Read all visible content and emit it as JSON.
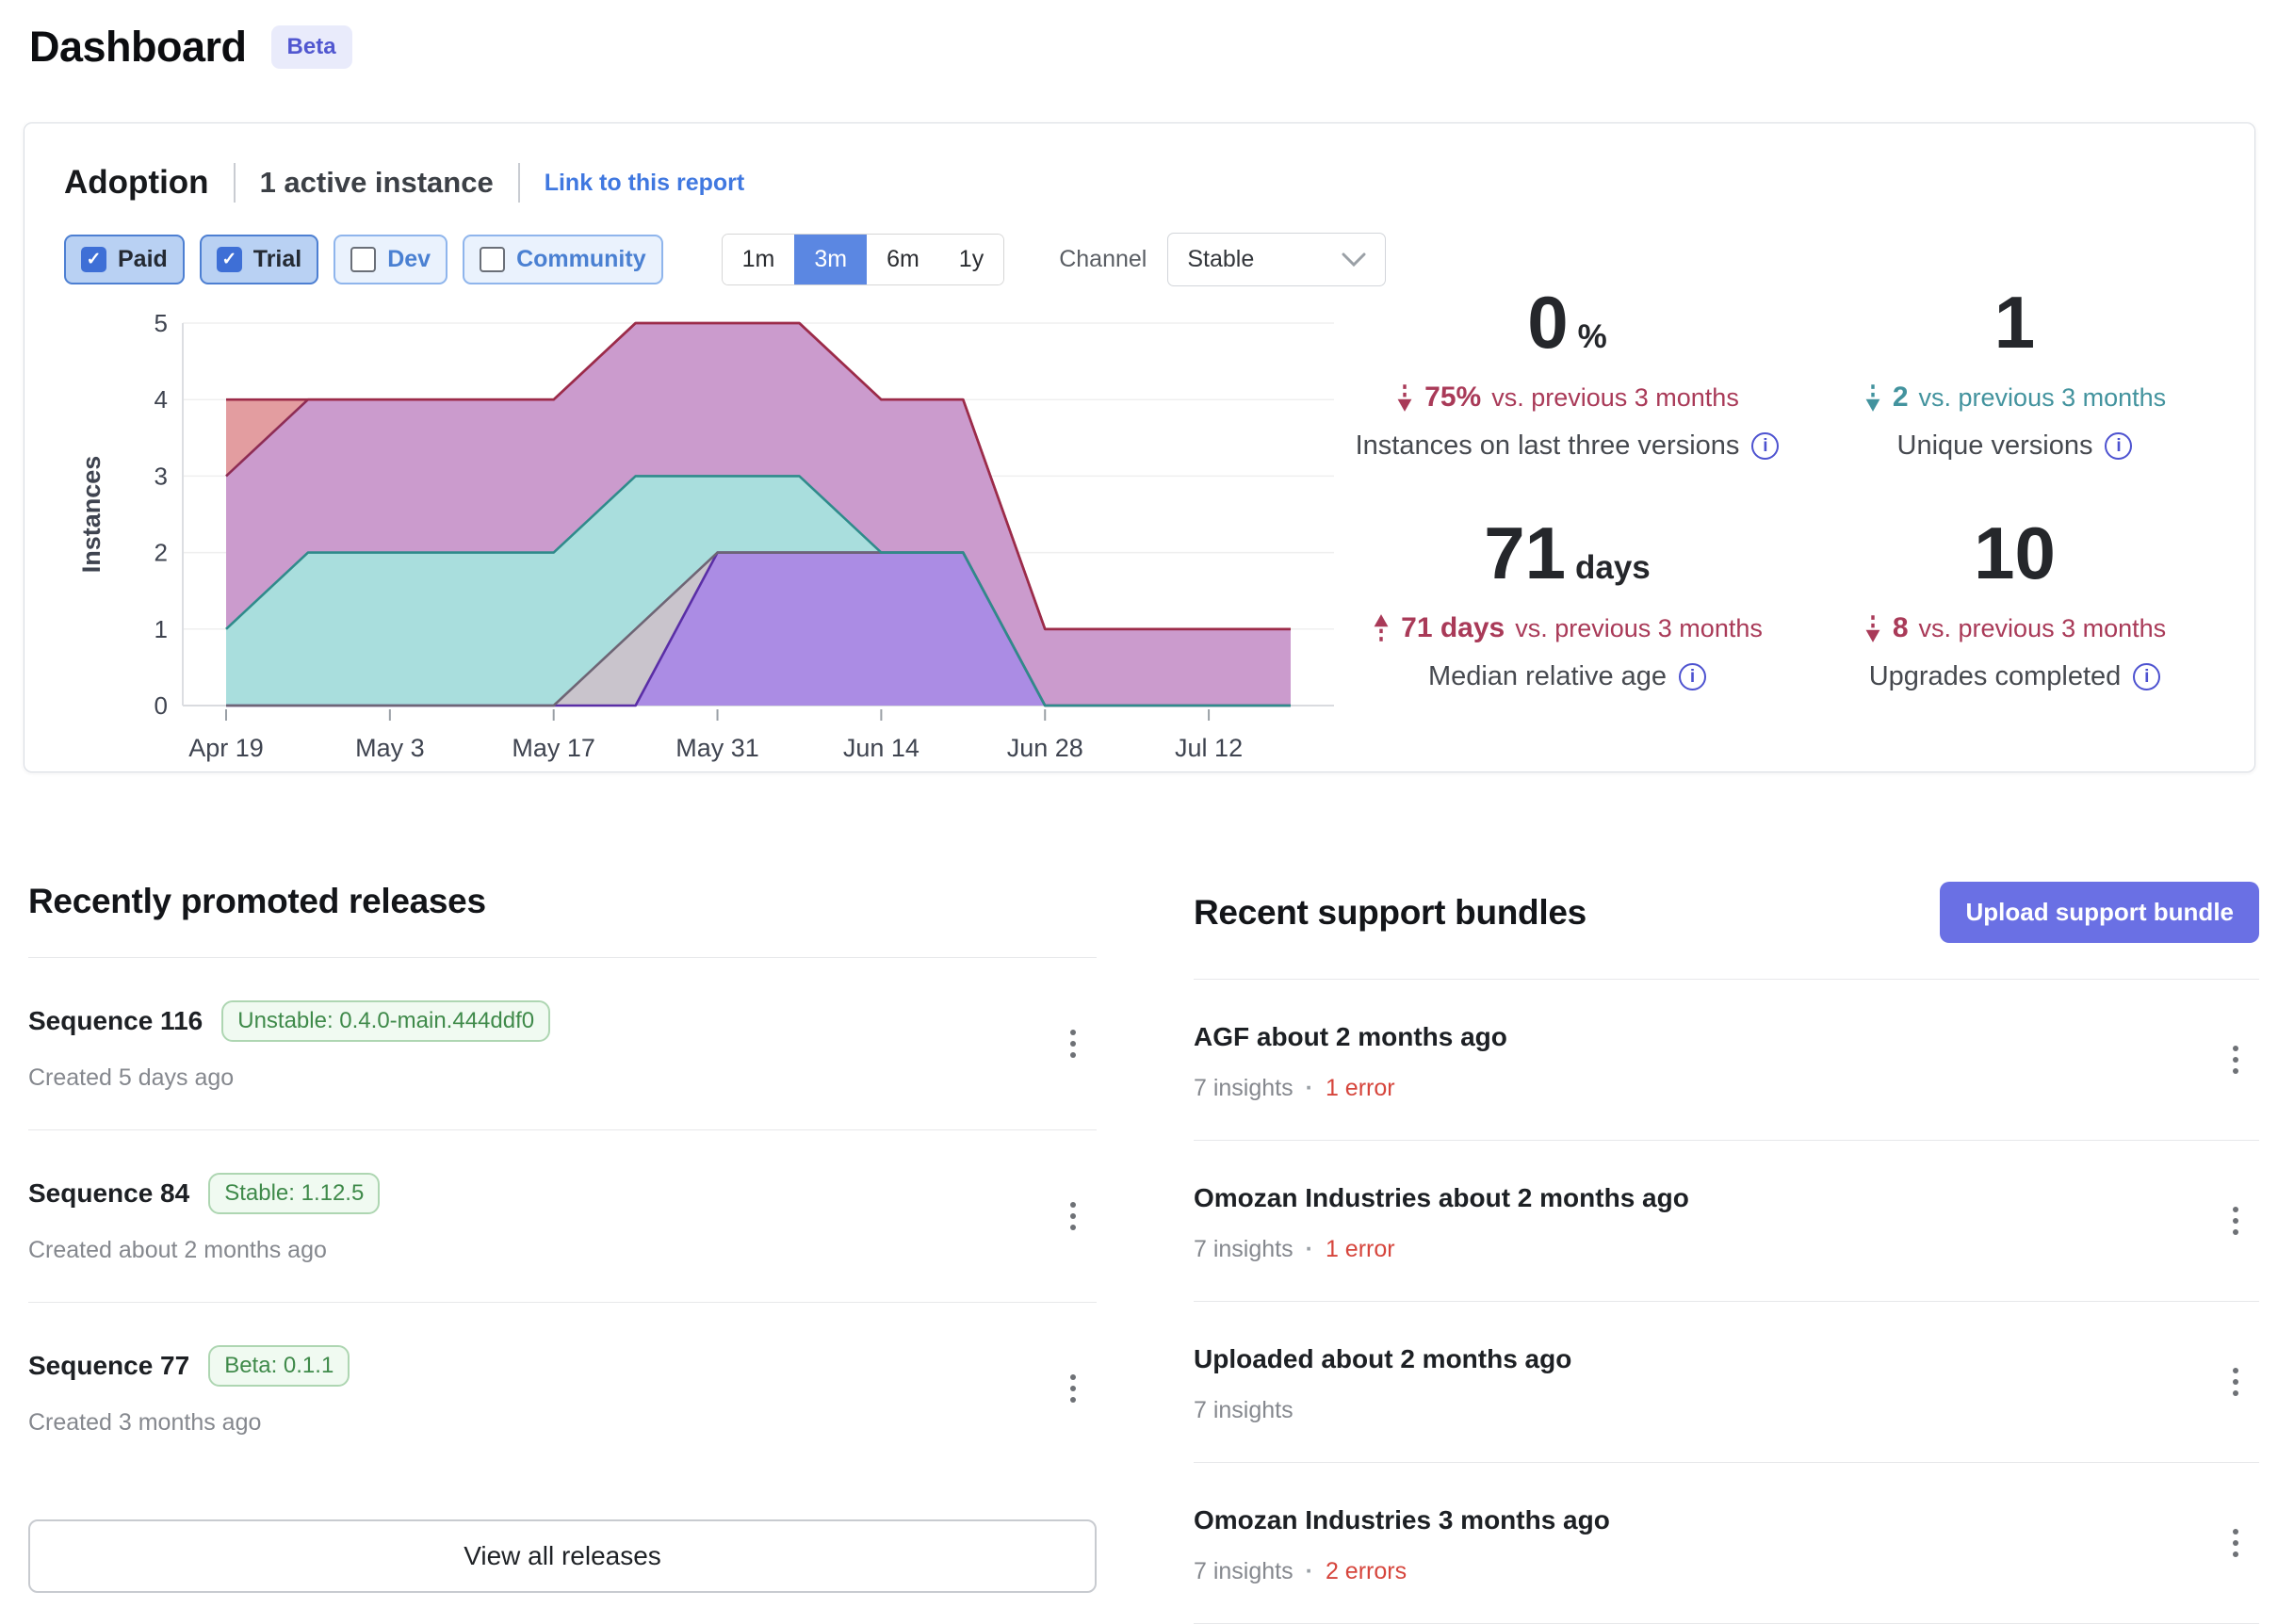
{
  "page": {
    "title": "Dashboard",
    "beta_badge": "Beta"
  },
  "colors": {
    "crimson": "#a93a58",
    "teal": "#43939e",
    "link_blue": "#4078e0",
    "range_selected": "#5b87e2",
    "upload_button": "#6a70e4",
    "error_red": "#d6453c",
    "badge_green": "#3f8a4a",
    "beta_badge_text": "#5157d0"
  },
  "adoption": {
    "title": "Adoption",
    "subtitle": "1 active instance",
    "link_label": "Link to this report",
    "filters": [
      {
        "label": "Paid",
        "checked": true
      },
      {
        "label": "Trial",
        "checked": true
      },
      {
        "label": "Dev",
        "checked": false
      },
      {
        "label": "Community",
        "checked": false
      }
    ],
    "ranges": [
      {
        "label": "1m",
        "selected": false
      },
      {
        "label": "3m",
        "selected": true
      },
      {
        "label": "6m",
        "selected": false
      },
      {
        "label": "1y",
        "selected": false
      }
    ],
    "channel": {
      "label": "Channel",
      "value": "Stable"
    },
    "stats": [
      {
        "value": "0",
        "suffix": "%",
        "delta_value": "75%",
        "delta_caption": "vs. previous 3 months",
        "direction": "down",
        "tone": "crimson",
        "label": "Instances on last three versions"
      },
      {
        "value": "1",
        "suffix": "",
        "delta_value": "2",
        "delta_caption": "vs. previous 3 months",
        "direction": "down",
        "tone": "teal",
        "label": "Unique versions"
      },
      {
        "value": "71",
        "suffix": "days",
        "delta_value": "71 days",
        "delta_caption": "vs. previous 3 months",
        "direction": "up",
        "tone": "crimson",
        "label": "Median relative age"
      },
      {
        "value": "10",
        "suffix": "",
        "delta_value": "8",
        "delta_caption": "vs. previous 3 months",
        "direction": "down",
        "tone": "crimson",
        "label": "Upgrades completed"
      }
    ]
  },
  "chart_data": {
    "type": "area",
    "stacked": true,
    "title": "",
    "xlabel": "",
    "ylabel": "Instances",
    "ylim": [
      0,
      5
    ],
    "yticks": [
      0,
      1,
      2,
      3,
      4,
      5
    ],
    "xtick_every": 2,
    "x": [
      "Apr 19",
      "Apr 26",
      "May 3",
      "May 10",
      "May 17",
      "May 24",
      "May 31",
      "Jun 7",
      "Jun 14",
      "Jun 21",
      "Jun 28",
      "Jul 5",
      "Jul 12",
      "Jul 19"
    ],
    "series": [
      {
        "name": "purple-version",
        "fill": "#ab8ce4",
        "stroke": "#5a2ea6",
        "values": [
          0,
          0,
          0,
          0,
          0,
          0,
          2,
          2,
          2,
          2,
          0,
          0,
          0,
          0
        ]
      },
      {
        "name": "gray-version",
        "fill": "#c9c4cc",
        "stroke": "#6e6575",
        "values": [
          0,
          0,
          0,
          0,
          0,
          1,
          0,
          0,
          0,
          0,
          0,
          0,
          0,
          0
        ]
      },
      {
        "name": "teal-version",
        "fill": "#a9dedd",
        "stroke": "#2f8b8b",
        "values": [
          1,
          2,
          2,
          2,
          2,
          2,
          1,
          1,
          0,
          0,
          0,
          0,
          0,
          0
        ]
      },
      {
        "name": "pink-version",
        "fill": "#cb9bcd",
        "stroke": "#8e2d55",
        "values": [
          2,
          2,
          2,
          2,
          2,
          2,
          2,
          2,
          2,
          2,
          1,
          1,
          1,
          1
        ]
      },
      {
        "name": "salmon-version",
        "fill": "#e39da0",
        "stroke": "#9c2b49",
        "values": [
          1,
          0,
          0,
          0,
          0,
          0,
          0,
          0,
          0,
          0,
          0,
          0,
          0,
          0
        ]
      }
    ],
    "legend": "none",
    "grid": true
  },
  "releases": {
    "heading": "Recently promoted releases",
    "view_all": "View all releases",
    "items": [
      {
        "title": "Sequence 116",
        "badge": "Unstable: 0.4.0-main.444ddf0",
        "created": "Created 5 days ago"
      },
      {
        "title": "Sequence 84",
        "badge": "Stable: 1.12.5",
        "created": "Created about 2 months ago"
      },
      {
        "title": "Sequence 77",
        "badge": "Beta: 0.1.1",
        "created": "Created 3 months ago"
      }
    ]
  },
  "bundles": {
    "heading": "Recent support bundles",
    "upload_button": "Upload support bundle",
    "separator": "·",
    "items": [
      {
        "title": "AGF about 2 months ago",
        "insights": "7 insights",
        "errors": "1 error"
      },
      {
        "title": "Omozan Industries about 2 months ago",
        "insights": "7 insights",
        "errors": "1 error"
      },
      {
        "title": "Uploaded about 2 months ago",
        "insights": "7 insights",
        "errors": ""
      },
      {
        "title": "Omozan Industries 3 months ago",
        "insights": "7 insights",
        "errors": "2 errors"
      }
    ]
  }
}
